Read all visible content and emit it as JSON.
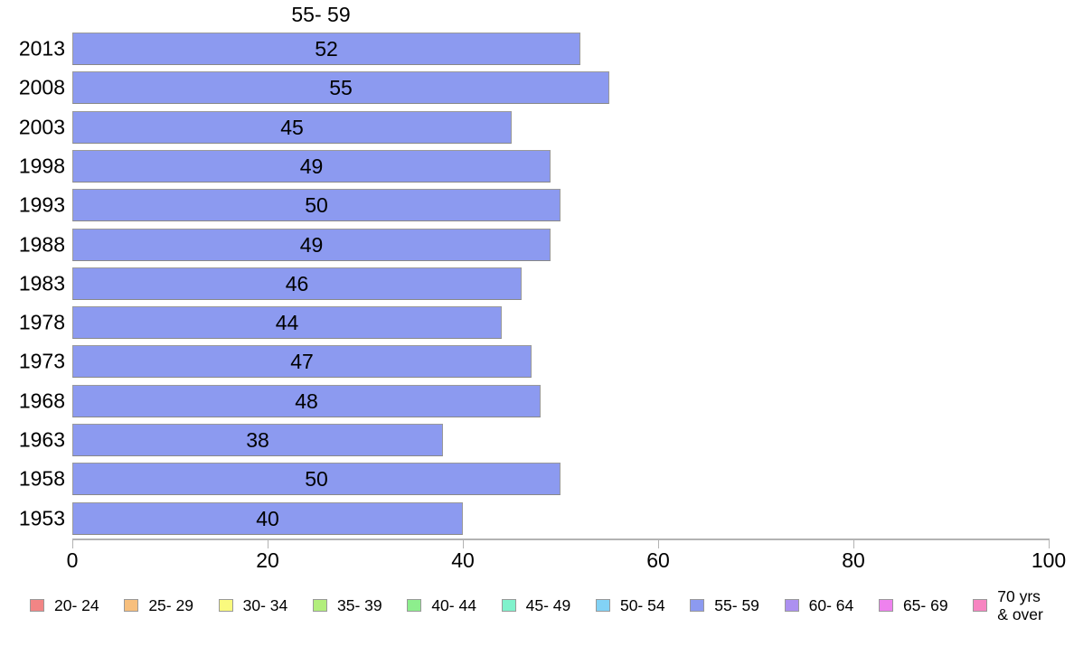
{
  "chart_data": {
    "type": "bar",
    "orientation": "horizontal",
    "title": "55- 59",
    "categories": [
      "2013",
      "2008",
      "2003",
      "1998",
      "1993",
      "1988",
      "1983",
      "1978",
      "1973",
      "1968",
      "1963",
      "1958",
      "1953"
    ],
    "values": [
      52,
      55,
      45,
      49,
      50,
      49,
      46,
      44,
      47,
      48,
      38,
      50,
      40
    ],
    "xlabel": "",
    "ylabel": "",
    "xlim": [
      0,
      100
    ],
    "x_ticks": [
      0,
      20,
      40,
      60,
      80,
      100
    ],
    "grid": false,
    "bar_color": "#8C9AF0",
    "bar_border_color": "#9a9a9a",
    "axis_color": "#b3b3b3",
    "legend_position": "bottom",
    "legend": [
      {
        "label": "20- 24",
        "color": "#F28585"
      },
      {
        "label": "25- 29",
        "color": "#F7BF7D"
      },
      {
        "label": "30- 34",
        "color": "#FAFA7E"
      },
      {
        "label": "35- 39",
        "color": "#B2EE7D"
      },
      {
        "label": "40- 44",
        "color": "#8DEE8D"
      },
      {
        "label": "45- 49",
        "color": "#80F2CC"
      },
      {
        "label": "50- 54",
        "color": "#82D2F5"
      },
      {
        "label": "55- 59",
        "color": "#8C9AF0"
      },
      {
        "label": "60- 64",
        "color": "#AC90F0"
      },
      {
        "label": "65- 69",
        "color": "#EE82EE"
      },
      {
        "label": "70 yrs\n& over",
        "color": "#F785C1"
      }
    ]
  }
}
